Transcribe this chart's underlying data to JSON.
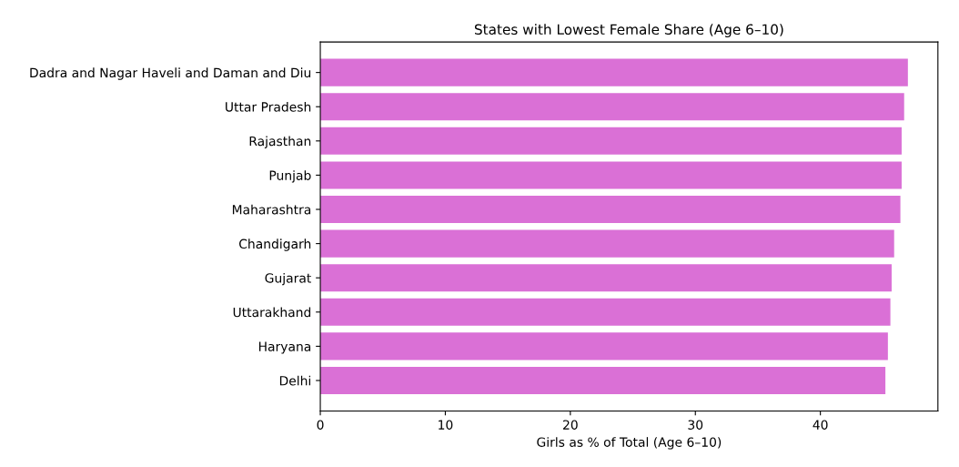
{
  "chart_data": {
    "type": "bar",
    "orientation": "horizontal",
    "title": "States with Lowest Female Share (Age 6–10)",
    "xlabel": "Girls as % of Total (Age 6–10)",
    "categories": [
      "Dadra and Nagar Haveli and Daman and Diu",
      "Uttar Pradesh",
      "Rajasthan",
      "Punjab",
      "Maharashtra",
      "Chandigarh",
      "Gujarat",
      "Uttarakhand",
      "Haryana",
      "Delhi"
    ],
    "values": [
      47.0,
      46.7,
      46.5,
      46.5,
      46.4,
      45.9,
      45.7,
      45.6,
      45.4,
      45.2
    ],
    "color": "#da70d6",
    "xlim": [
      0,
      49.4
    ],
    "xticks": [
      0,
      10,
      20,
      30,
      40
    ],
    "grid": false
  }
}
